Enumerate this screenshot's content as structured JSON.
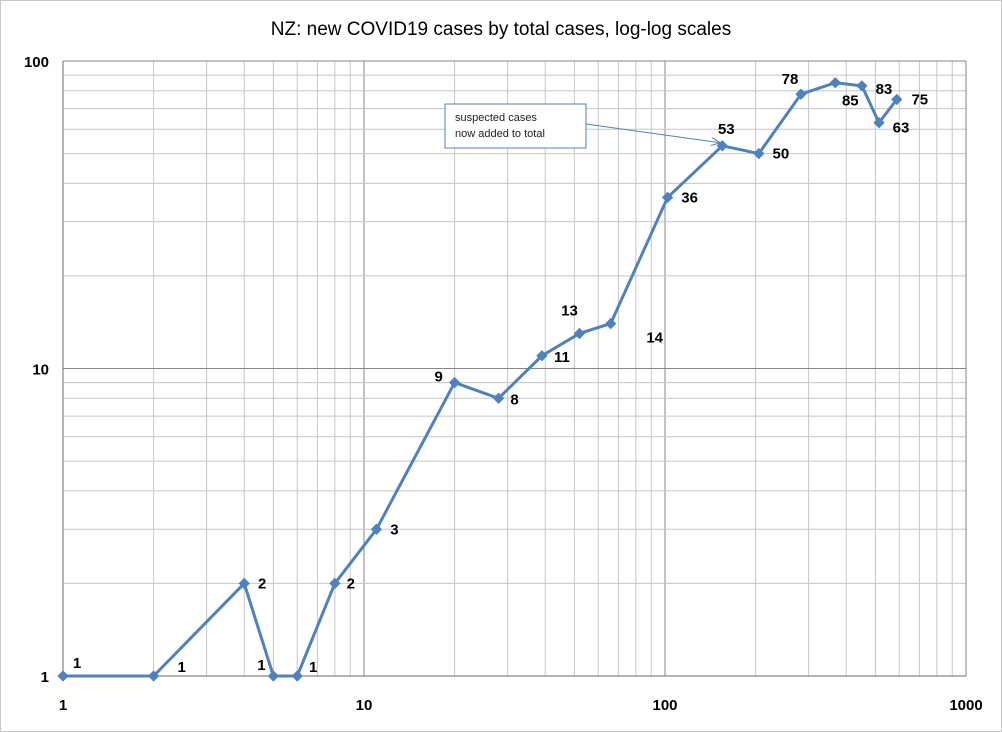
{
  "chart_data": {
    "type": "line",
    "title": "NZ: new COVID19 cases by total cases, log-log scales",
    "xlabel": "",
    "ylabel": "",
    "x_scale": "log",
    "y_scale": "log",
    "xlim": [
      1,
      1000
    ],
    "ylim": [
      1,
      100
    ],
    "x_ticks": [
      "1",
      "10",
      "100",
      "1000"
    ],
    "y_ticks": [
      "1",
      "10",
      "100"
    ],
    "grid": true,
    "legend": "none",
    "line_color": "#4f81bd",
    "series": [
      {
        "x": [
          1,
          2,
          4,
          5,
          6,
          8,
          11,
          20,
          28,
          39,
          52,
          66,
          102,
          155,
          205,
          283,
          368,
          451,
          514,
          589
        ],
        "values": [
          1,
          1,
          2,
          1,
          1,
          2,
          3,
          9,
          8,
          11,
          13,
          14,
          36,
          53,
          50,
          78,
          85,
          83,
          63,
          75
        ],
        "data_labels": [
          "1",
          "1",
          "2",
          "1",
          "1",
          "2",
          "3",
          "9",
          "8",
          "11",
          "13",
          "14",
          "36",
          "53",
          "50",
          "78",
          "85",
          "83",
          "63",
          "75"
        ]
      }
    ],
    "annotation": {
      "lines": [
        "suspected cases",
        "now added to total"
      ],
      "points_to_x": 155,
      "points_to_y": 53
    }
  }
}
